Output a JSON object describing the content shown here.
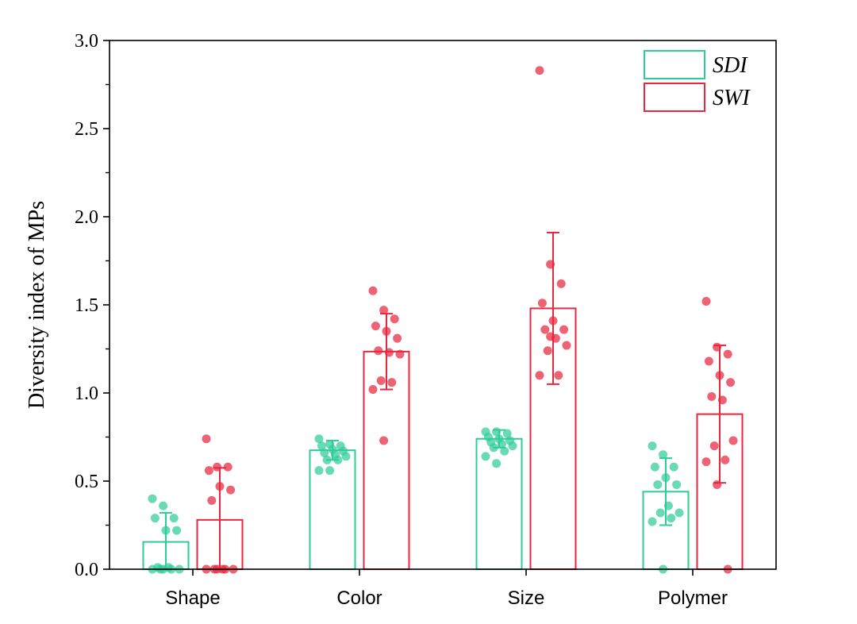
{
  "chart_data": {
    "type": "bar",
    "ylabel": "Diversity index of MPs",
    "xlabel": "",
    "ylim": [
      0,
      3.0
    ],
    "yticks": [
      "0.0",
      "0.5",
      "1.0",
      "1.5",
      "2.0",
      "2.5",
      "3.0"
    ],
    "categories": [
      "Shape",
      "Color",
      "Size",
      "Polymer"
    ],
    "legend_position": "top-right",
    "series": [
      {
        "name": "SDI",
        "color": "#2ECC9A",
        "values": [
          0.155,
          0.675,
          0.74,
          0.44
        ],
        "sd": [
          0.165,
          0.055,
          0.05,
          0.19
        ],
        "points": [
          [
            0.4,
            0.36,
            0.29,
            0.29,
            0.22,
            0.22,
            0.01,
            0.01,
            0.0,
            0.0,
            0.0,
            0.0,
            0.0
          ],
          [
            0.74,
            0.71,
            0.7,
            0.7,
            0.68,
            0.67,
            0.66,
            0.65,
            0.64,
            0.62,
            0.62,
            0.56,
            0.56
          ],
          [
            0.78,
            0.78,
            0.77,
            0.75,
            0.74,
            0.73,
            0.72,
            0.71,
            0.7,
            0.69,
            0.67,
            0.64,
            0.6
          ],
          [
            0.7,
            0.65,
            0.58,
            0.58,
            0.52,
            0.48,
            0.48,
            0.36,
            0.32,
            0.32,
            0.29,
            0.27,
            0.0
          ]
        ]
      },
      {
        "name": "SWI",
        "color": "#E8273F",
        "values": [
          0.28,
          1.235,
          1.48,
          0.88
        ],
        "sd": [
          0.295,
          0.215,
          0.43,
          0.39
        ],
        "points": [
          [
            0.74,
            0.58,
            0.58,
            0.56,
            0.47,
            0.45,
            0.39,
            0.0,
            0.0,
            0.0,
            0.0,
            0.0,
            0.0
          ],
          [
            1.58,
            1.47,
            1.42,
            1.38,
            1.35,
            1.31,
            1.24,
            1.23,
            1.22,
            1.07,
            1.06,
            1.02,
            0.73
          ],
          [
            2.83,
            1.73,
            1.62,
            1.51,
            1.41,
            1.36,
            1.36,
            1.31,
            1.27,
            1.24,
            1.1,
            1.1,
            1.32
          ],
          [
            1.52,
            1.26,
            1.22,
            1.18,
            1.1,
            1.06,
            0.98,
            0.96,
            0.73,
            0.7,
            0.62,
            0.61,
            0.48,
            0.0
          ]
        ]
      }
    ]
  }
}
